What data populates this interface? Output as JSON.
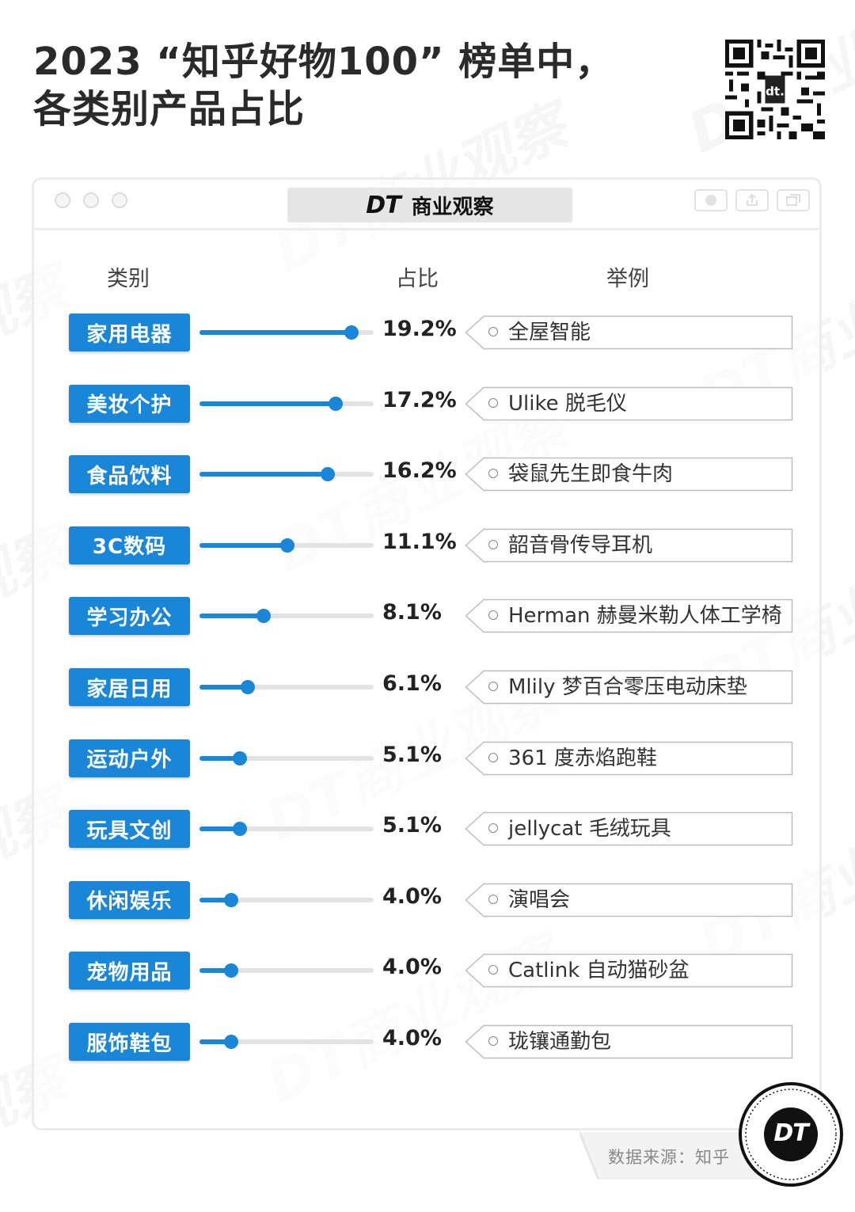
{
  "title_lines": [
    "2023 “知乎好物100” 榜单中，",
    "各类别产品占比"
  ],
  "window": {
    "title_mark": "DT",
    "title_text": "商业观察"
  },
  "headers": {
    "category": "类别",
    "share": "占比",
    "example": "举例"
  },
  "source": "数据来源：知乎",
  "logo_text": "DT",
  "colors": {
    "accent": "#1a86d8",
    "track": "#e3e3e3",
    "title": "#2a2a2a"
  },
  "icons": [
    "qr-code",
    "close-dot",
    "minimize-dot",
    "maximize-dot",
    "record-icon",
    "share-icon",
    "window-icon",
    "dt-logo"
  ],
  "chart_data": {
    "type": "bar",
    "title": "2023 “知乎好物100” 榜单中，各类别产品占比",
    "unit": "%",
    "xlim": [
      0,
      22
    ],
    "categories": [
      "家用电器",
      "美妆个护",
      "食品饮料",
      "3C数码",
      "学习办公",
      "家居日用",
      "运动户外",
      "玩具文创",
      "休闲娱乐",
      "宠物用品",
      "服饰鞋包"
    ],
    "values": [
      19.2,
      17.2,
      16.2,
      11.1,
      8.1,
      6.1,
      5.1,
      5.1,
      4.0,
      4.0,
      4.0
    ],
    "value_labels": [
      "19.2%",
      "17.2%",
      "16.2%",
      "11.1%",
      "8.1%",
      "6.1%",
      "5.1%",
      "5.1%",
      "4.0%",
      "4.0%",
      "4.0%"
    ],
    "examples": [
      "全屋智能",
      "Ulike 脱毛仪",
      "袋鼠先生即食牛肉",
      "韶音骨传导耳机",
      "Herman 赫曼米勒人体工学椅",
      "Mlily 梦百合零压电动床垫",
      "361 度赤焰跑鞋",
      "jellycat 毛绒玩具",
      "演唱会",
      "Catlink 自动猫砂盆",
      "珑镶通勤包"
    ]
  }
}
